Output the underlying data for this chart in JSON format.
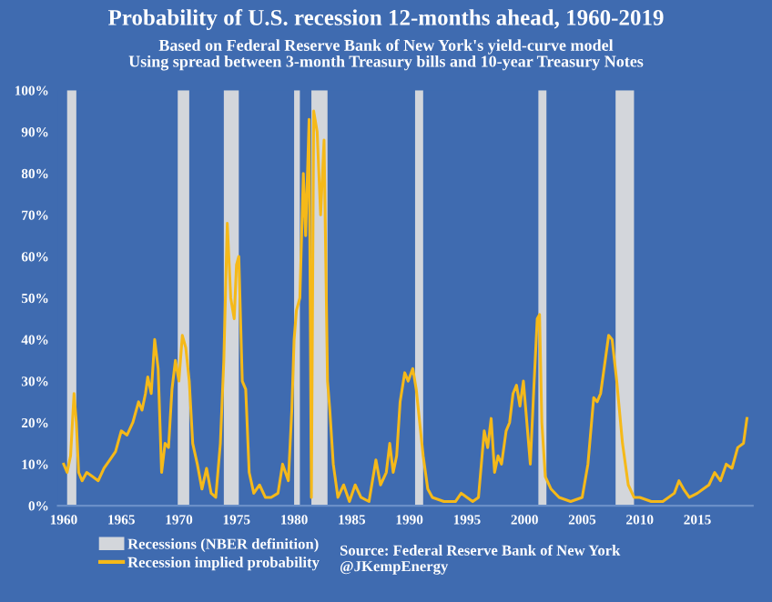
{
  "chart_data": {
    "type": "line",
    "title": "Probability of U.S. recession 12-months ahead, 1960-2019",
    "subtitle": "Based on Federal Reserve Bank of New York's yield-curve model\nUsing spread between 3-month Treasury bills and 10-year Treasury Notes",
    "annotations": [
      "Source: Federal Reserve Bank of New York\n@JKempEnergy"
    ],
    "series": [
      {
        "name": "Recession implied probability",
        "color": "#f5b919",
        "x": [
          1960.0,
          1960.3,
          1960.6,
          1960.9,
          1961.1,
          1961.3,
          1961.6,
          1962.0,
          1962.5,
          1963.0,
          1963.5,
          1964.0,
          1964.5,
          1965.0,
          1965.5,
          1966.0,
          1966.5,
          1966.8,
          1967.1,
          1967.3,
          1967.6,
          1967.9,
          1968.2,
          1968.5,
          1968.8,
          1969.1,
          1969.4,
          1969.7,
          1970.0,
          1970.3,
          1970.6,
          1970.9,
          1971.2,
          1971.6,
          1972.0,
          1972.4,
          1972.8,
          1973.2,
          1973.6,
          1973.9,
          1974.2,
          1974.5,
          1974.8,
          1975.0,
          1975.2,
          1975.5,
          1975.8,
          1976.1,
          1976.5,
          1977.0,
          1977.5,
          1978.0,
          1978.6,
          1979.0,
          1979.5,
          1979.8,
          1980.0,
          1980.2,
          1980.5,
          1980.8,
          1981.0,
          1981.3,
          1981.5,
          1981.7,
          1982.0,
          1982.3,
          1982.6,
          1982.9,
          1983.1,
          1983.4,
          1983.8,
          1984.3,
          1984.8,
          1985.3,
          1985.8,
          1986.5,
          1987.1,
          1987.5,
          1988.0,
          1988.3,
          1988.6,
          1988.9,
          1989.2,
          1989.6,
          1989.9,
          1990.3,
          1990.6,
          1990.9,
          1991.2,
          1991.6,
          1992.0,
          1993.0,
          1994.0,
          1994.5,
          1995.0,
          1995.5,
          1996.0,
          1996.5,
          1996.8,
          1997.1,
          1997.4,
          1997.7,
          1998.0,
          1998.4,
          1998.7,
          1999.0,
          1999.3,
          1999.6,
          1999.9,
          2000.2,
          2000.5,
          2000.8,
          2001.1,
          2001.3,
          2001.5,
          2001.8,
          2002.3,
          2003.0,
          2004.0,
          2005.0,
          2005.5,
          2006.0,
          2006.3,
          2006.6,
          2007.0,
          2007.3,
          2007.6,
          2008.0,
          2008.5,
          2009.0,
          2009.5,
          2010.0,
          2011.0,
          2012.0,
          2013.0,
          2013.4,
          2013.8,
          2014.3,
          2015.0,
          2015.5,
          2016.0,
          2016.5,
          2017.0,
          2017.5,
          2018.0,
          2018.5,
          2019.0,
          2019.3
        ],
        "values": [
          10,
          8,
          12,
          27,
          20,
          8,
          6,
          8,
          7,
          6,
          9,
          11,
          13,
          18,
          17,
          20,
          25,
          23,
          27,
          31,
          27,
          40,
          33,
          8,
          15,
          14,
          28,
          35,
          30,
          41,
          38,
          30,
          15,
          10,
          4,
          9,
          3,
          2,
          15,
          35,
          68,
          50,
          45,
          58,
          60,
          30,
          28,
          8,
          3,
          5,
          2,
          2,
          3,
          10,
          6,
          23,
          40,
          47,
          50,
          80,
          65,
          93,
          2,
          95,
          90,
          70,
          88,
          30,
          23,
          10,
          2,
          5,
          1,
          5,
          2,
          1,
          11,
          5,
          8,
          15,
          8,
          12,
          25,
          32,
          30,
          33,
          28,
          20,
          12,
          4,
          2,
          1,
          1,
          3,
          2,
          1,
          2,
          18,
          14,
          21,
          8,
          12,
          10,
          18,
          20,
          27,
          29,
          24,
          30,
          20,
          10,
          28,
          45,
          46,
          20,
          7,
          4,
          2,
          1,
          2,
          10,
          26,
          25,
          27,
          35,
          41,
          40,
          30,
          15,
          5,
          2,
          2,
          1,
          1,
          3,
          6,
          4,
          2,
          3,
          4,
          5,
          8,
          6,
          10,
          9,
          14,
          15,
          21
        ]
      }
    ],
    "bands": [
      {
        "axis": "x",
        "from": 1960.3,
        "to": 1961.1,
        "label": "Recessions (NBER definition)",
        "color": "#d3d6db"
      },
      {
        "axis": "x",
        "from": 1969.9,
        "to": 1970.9,
        "label": null,
        "color": "#d3d6db"
      },
      {
        "axis": "x",
        "from": 1973.9,
        "to": 1975.2,
        "label": null,
        "color": "#d3d6db"
      },
      {
        "axis": "x",
        "from": 1980.0,
        "to": 1980.5,
        "label": null,
        "color": "#d3d6db"
      },
      {
        "axis": "x",
        "from": 1981.5,
        "to": 1982.9,
        "label": null,
        "color": "#d3d6db"
      },
      {
        "axis": "x",
        "from": 1990.5,
        "to": 1991.2,
        "label": null,
        "color": "#d3d6db"
      },
      {
        "axis": "x",
        "from": 2001.2,
        "to": 2001.9,
        "label": null,
        "color": "#d3d6db"
      },
      {
        "axis": "x",
        "from": 2007.9,
        "to": 2009.5,
        "label": null,
        "color": "#d3d6db"
      }
    ],
    "xlim": [
      1959.5,
      2019.8
    ],
    "xticks": [
      1960,
      1965,
      1970,
      1975,
      1980,
      1985,
      1990,
      1995,
      2000,
      2005,
      2010,
      2015
    ],
    "ylim": [
      0,
      100
    ],
    "yticks": [
      {
        "value": 0,
        "label": "0%"
      },
      {
        "value": 10,
        "label": "10%"
      },
      {
        "value": 20,
        "label": "20%"
      },
      {
        "value": 30,
        "label": "30%"
      },
      {
        "value": 40,
        "label": "40%"
      },
      {
        "value": 50,
        "label": "50%"
      },
      {
        "value": 60,
        "label": "60%"
      },
      {
        "value": 70,
        "label": "70%"
      },
      {
        "value": 80,
        "label": "80%"
      },
      {
        "value": 90,
        "label": "90%"
      },
      {
        "value": 100,
        "label": "100%"
      }
    ],
    "grid": false,
    "legend": "bottom left"
  }
}
